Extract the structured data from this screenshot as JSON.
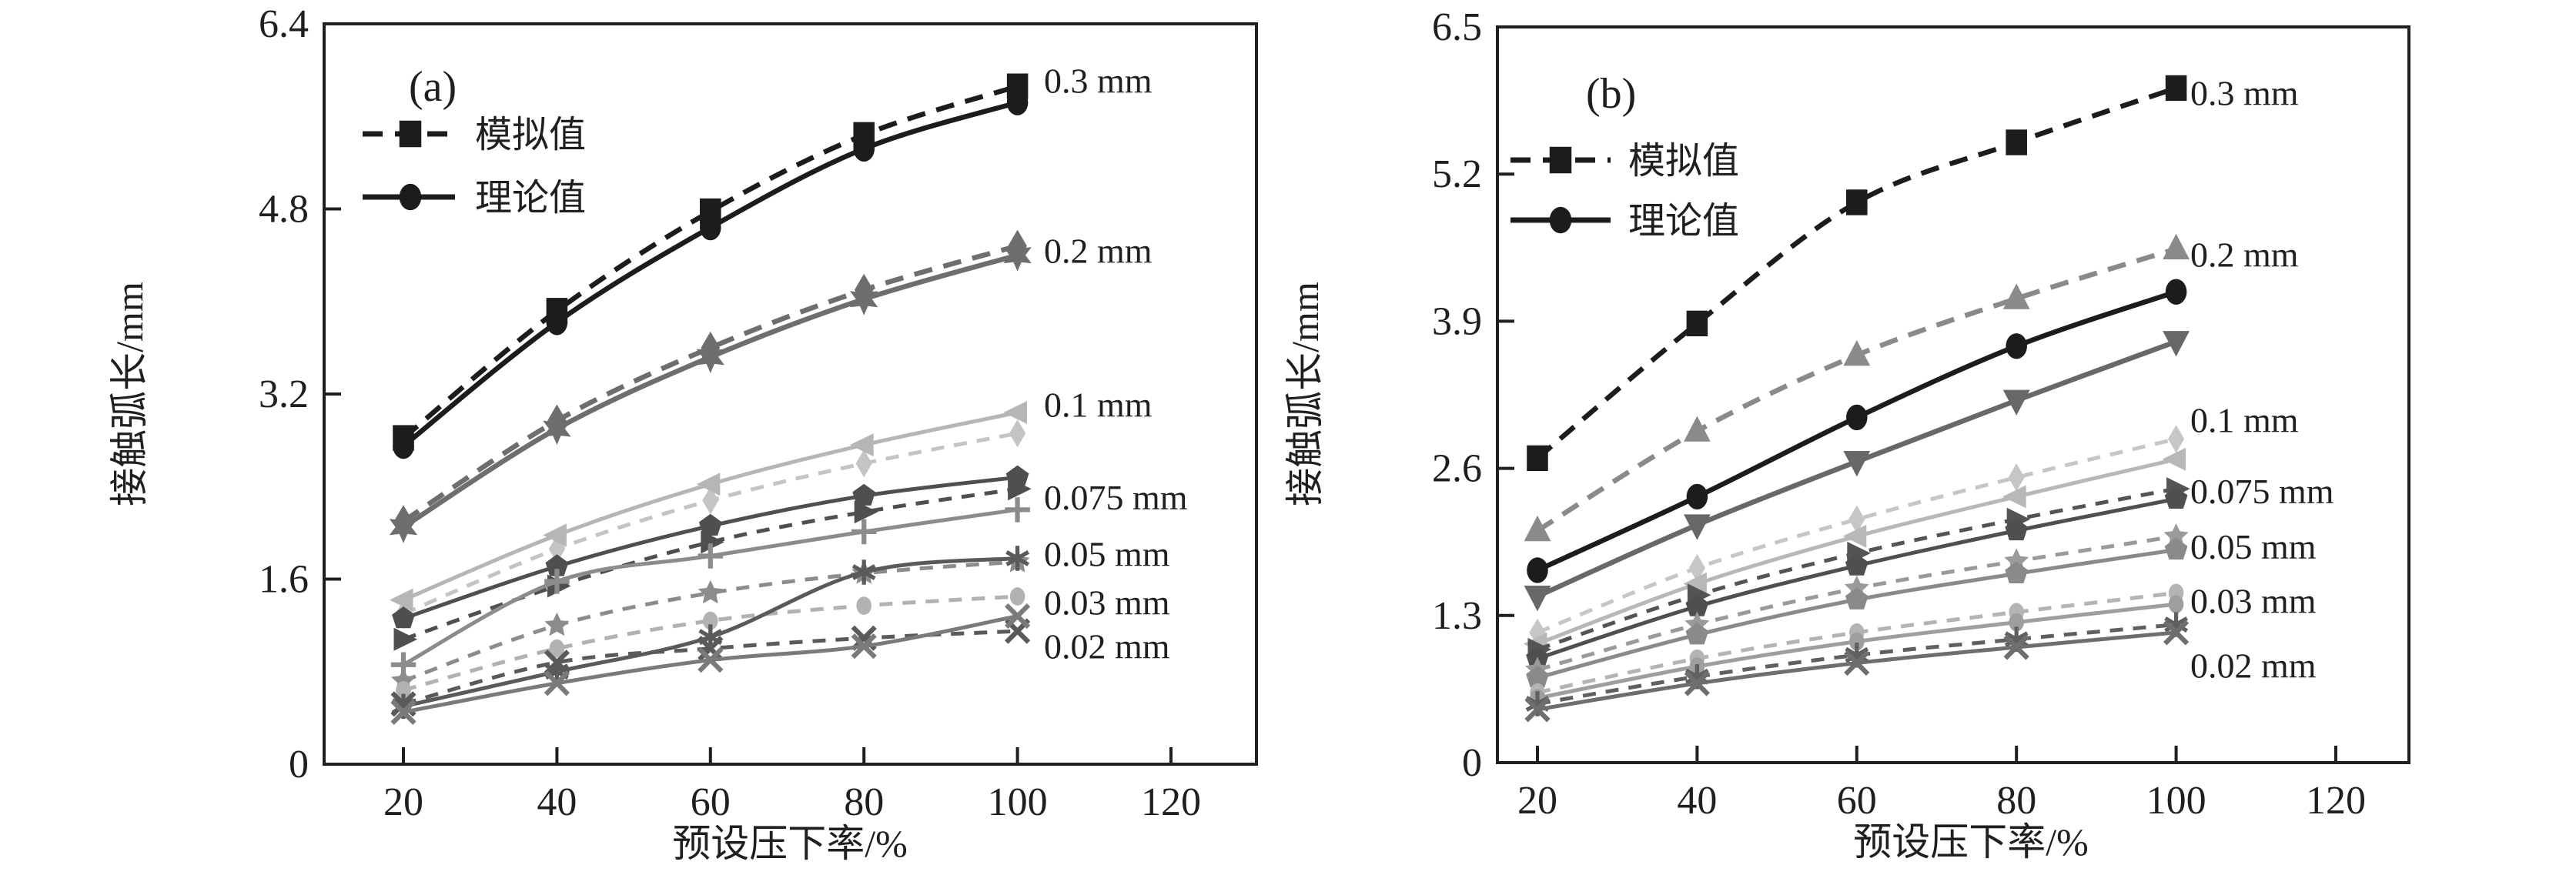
{
  "figure": {
    "background": "#ffffff"
  },
  "chart_data": [
    {
      "panel_label": "(a)",
      "type": "line",
      "xlabel": "预设压下率/%",
      "ylabel": "接触弧长/mm",
      "x_ticks": [
        20,
        40,
        60,
        80,
        100,
        120
      ],
      "y_ticks": [
        0,
        1.6,
        3.2,
        4.8,
        6.4
      ],
      "ylim": [
        0,
        6.4
      ],
      "xlim": [
        10,
        131
      ],
      "grid": false,
      "legend_position": "top-left-inside",
      "legend": [
        {
          "label": "模拟值",
          "line": "dashed",
          "marker": "square",
          "color": "#1c1c1c"
        },
        {
          "label": "理论值",
          "line": "solid",
          "marker": "circle",
          "color": "#1c1c1c"
        }
      ],
      "x": [
        20,
        40,
        60,
        80,
        100
      ],
      "series": [
        {
          "label": "0.3 mm",
          "kind": "模拟值",
          "line": "dashed",
          "marker": "square",
          "color": "#1c1c1c",
          "values": [
            2.82,
            3.92,
            4.78,
            5.44,
            5.86
          ]
        },
        {
          "label": "0.3 mm",
          "kind": "理论值",
          "line": "solid",
          "marker": "circle",
          "color": "#1c1c1c",
          "values": [
            2.75,
            3.82,
            4.64,
            5.32,
            5.72
          ]
        },
        {
          "label": "0.2 mm",
          "kind": "模拟值",
          "line": "dashed",
          "marker": "diamond",
          "color": "#6e6e6e",
          "values": [
            2.1,
            2.97,
            3.6,
            4.1,
            4.48
          ]
        },
        {
          "label": "0.2 mm",
          "kind": "理论值",
          "line": "solid",
          "marker": "star6",
          "color": "#6e6e6e",
          "values": [
            2.05,
            2.9,
            3.52,
            4.02,
            4.4
          ]
        },
        {
          "label": "0.1 mm",
          "kind": "模拟值",
          "line": "dashed",
          "marker": "diamond",
          "color": "#c4c4c4",
          "values": [
            1.3,
            1.86,
            2.28,
            2.6,
            2.86
          ]
        },
        {
          "label": "0.1 mm",
          "kind": "理论值",
          "line": "solid",
          "marker": "tri-left",
          "color": "#b6b6b6",
          "values": [
            1.42,
            1.98,
            2.42,
            2.76,
            3.04
          ]
        },
        {
          "label": "0.075 mm",
          "kind": "模拟值",
          "line": "dashed",
          "marker": "tri-right",
          "color": "#4f4f4f",
          "values": [
            1.08,
            1.54,
            1.92,
            2.18,
            2.38
          ]
        },
        {
          "label": "0.075 mm",
          "kind": "理论值",
          "line": "solid",
          "marker": "pentagon",
          "color": "#4f4f4f",
          "values": [
            1.26,
            1.71,
            2.06,
            2.32,
            2.48
          ]
        },
        {
          "label": "0.05 mm",
          "kind": "模拟值",
          "line": "dashed",
          "marker": "star5",
          "color": "#8c8c8c",
          "values": [
            0.72,
            1.2,
            1.48,
            1.65,
            1.75
          ]
        },
        {
          "label": "0.05 mm",
          "kind": "理论值",
          "line": "solid",
          "marker": "plus",
          "color": "#8c8c8c",
          "values": [
            0.86,
            1.58,
            1.8,
            2.01,
            2.2
          ]
        },
        {
          "label": "0.03 mm",
          "kind": "模拟值",
          "line": "dashed",
          "marker": "circle-small",
          "color": "#b2b2b2",
          "values": [
            0.64,
            1.0,
            1.24,
            1.37,
            1.45
          ]
        },
        {
          "label": "0.03 mm",
          "kind": "理论值",
          "line": "solid",
          "marker": "asterisk",
          "color": "#5a5a5a",
          "values": [
            0.5,
            0.8,
            1.1,
            1.66,
            1.78
          ]
        },
        {
          "label": "0.02 mm",
          "kind": "模拟值",
          "line": "dashed",
          "marker": "x",
          "color": "#5a5a5a",
          "values": [
            0.52,
            0.88,
            1.0,
            1.09,
            1.15
          ]
        },
        {
          "label": "0.02 mm",
          "kind": "理论值",
          "line": "solid",
          "marker": "x",
          "color": "#7a7a7a",
          "values": [
            0.45,
            0.7,
            0.9,
            1.02,
            1.28
          ]
        }
      ],
      "series_labels": [
        {
          "text": "0.3 mm",
          "value": 5.91,
          "color": "#1c1c1c"
        },
        {
          "text": "0.2 mm",
          "value": 4.44,
          "color": "#787878"
        },
        {
          "text": "0.1 mm",
          "value": 3.11,
          "color": "#c0c0c0"
        },
        {
          "text": "0.075 mm",
          "value": 2.31,
          "color": "#4f4f4f"
        },
        {
          "text": "0.05 mm",
          "value": 1.82,
          "color": "#8c8c8c"
        },
        {
          "text": "0.03 mm",
          "value": 1.4,
          "color": "#aeaeae"
        },
        {
          "text": "0.02 mm",
          "value": 1.02,
          "color": "#6e6e6e"
        }
      ]
    },
    {
      "panel_label": "(b)",
      "type": "line",
      "xlabel": "预设压下率/%",
      "ylabel": "接触弧长/mm",
      "x_ticks": [
        20,
        40,
        60,
        80,
        100,
        120
      ],
      "y_ticks": [
        0,
        1.3,
        2.6,
        3.9,
        5.2,
        6.5
      ],
      "ylim": [
        0,
        6.5
      ],
      "xlim": [
        15,
        129
      ],
      "grid": false,
      "legend_position": "top-left-inside",
      "legend": [
        {
          "label": "模拟值",
          "line": "dashed",
          "marker": "square",
          "color": "#1c1c1c"
        },
        {
          "label": "理论值",
          "line": "solid",
          "marker": "circle",
          "color": "#1c1c1c"
        }
      ],
      "x": [
        20,
        40,
        60,
        80,
        100
      ],
      "series": [
        {
          "label": "0.3 mm",
          "kind": "模拟值",
          "line": "dashed",
          "marker": "square",
          "color": "#1c1c1c",
          "values": [
            2.69,
            3.88,
            4.95,
            5.48,
            5.96
          ]
        },
        {
          "label": "0.3 mm",
          "kind": "理论值",
          "line": "solid",
          "marker": "circle",
          "color": "#1c1c1c",
          "values": [
            1.7,
            2.35,
            3.05,
            3.68,
            4.16
          ]
        },
        {
          "label": "0.2 mm",
          "kind": "模拟值",
          "line": "dashed",
          "marker": "tri-up",
          "color": "#8a8a8a",
          "values": [
            2.05,
            2.93,
            3.6,
            4.1,
            4.54
          ]
        },
        {
          "label": "0.2 mm",
          "kind": "理论值",
          "line": "solid",
          "marker": "tri-down",
          "color": "#686868",
          "values": [
            1.47,
            2.1,
            2.66,
            3.2,
            3.72
          ]
        },
        {
          "label": "0.1 mm",
          "kind": "模拟值",
          "line": "dashed",
          "marker": "diamond",
          "color": "#c6c6c6",
          "values": [
            1.15,
            1.72,
            2.15,
            2.52,
            2.86
          ]
        },
        {
          "label": "0.1 mm",
          "kind": "理论值",
          "line": "solid",
          "marker": "tri-left",
          "color": "#b8b8b8",
          "values": [
            1.05,
            1.58,
            2.0,
            2.35,
            2.68
          ]
        },
        {
          "label": "0.075 mm",
          "kind": "模拟值",
          "line": "dashed",
          "marker": "tri-right",
          "color": "#545454",
          "values": [
            1.0,
            1.48,
            1.85,
            2.15,
            2.42
          ]
        },
        {
          "label": "0.075 mm",
          "kind": "理论值",
          "line": "solid",
          "marker": "pentagon",
          "color": "#4f4f4f",
          "values": [
            0.92,
            1.38,
            1.74,
            2.05,
            2.33
          ]
        },
        {
          "label": "0.05 mm",
          "kind": "模拟值",
          "line": "dashed",
          "marker": "star5",
          "color": "#9a9a9a",
          "values": [
            0.82,
            1.22,
            1.54,
            1.78,
            2.0
          ]
        },
        {
          "label": "0.05 mm",
          "kind": "理论值",
          "line": "solid",
          "marker": "pentagon",
          "color": "#8a8a8a",
          "values": [
            0.75,
            1.13,
            1.44,
            1.67,
            1.88
          ]
        },
        {
          "label": "0.03 mm",
          "kind": "模拟值",
          "line": "dashed",
          "marker": "circle-small",
          "color": "#b4b4b4",
          "values": [
            0.62,
            0.92,
            1.15,
            1.33,
            1.5
          ]
        },
        {
          "label": "0.03 mm",
          "kind": "理论值",
          "line": "solid",
          "marker": "circle-small",
          "color": "#9e9e9e",
          "values": [
            0.57,
            0.85,
            1.07,
            1.24,
            1.4
          ]
        },
        {
          "label": "0.02 mm",
          "kind": "模拟值",
          "line": "dashed",
          "marker": "asterisk",
          "color": "#606060",
          "values": [
            0.52,
            0.76,
            0.95,
            1.09,
            1.22
          ]
        },
        {
          "label": "0.02 mm",
          "kind": "理论值",
          "line": "solid",
          "marker": "x",
          "color": "#6e6e6e",
          "values": [
            0.47,
            0.7,
            0.88,
            1.02,
            1.15
          ]
        }
      ],
      "series_labels": [
        {
          "text": "0.3 mm",
          "value": 5.92,
          "color": "#1c1c1c"
        },
        {
          "text": "0.2 mm",
          "value": 4.49,
          "color": "#8a8a8a"
        },
        {
          "text": "0.1 mm",
          "value": 3.03,
          "color": "#c4c4c4"
        },
        {
          "text": "0.075 mm",
          "value": 2.4,
          "color": "#4f4f4f"
        },
        {
          "text": "0.05 mm",
          "value": 1.91,
          "color": "#8a8a8a"
        },
        {
          "text": "0.03 mm",
          "value": 1.43,
          "color": "#b0b0b0"
        },
        {
          "text": "0.02 mm",
          "value": 0.86,
          "color": "#6e6e6e"
        }
      ]
    }
  ]
}
